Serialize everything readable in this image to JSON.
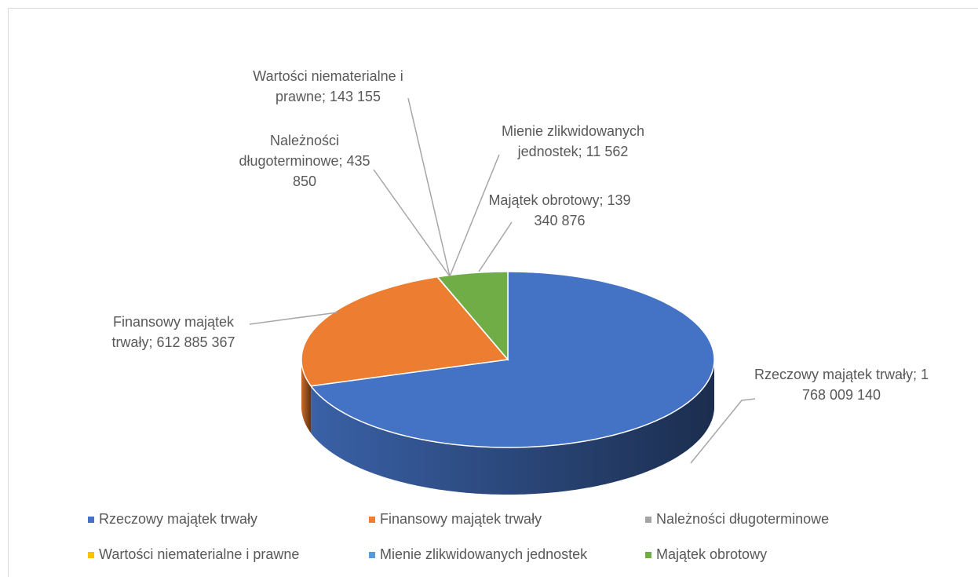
{
  "chart_data": {
    "type": "pie",
    "categories": [
      "Rzeczowy majątek trwały",
      "Finansowy majątek trwały",
      "Należności długoterminowe",
      "Wartości niematerialne i prawne",
      "Mienie zlikwidowanych jednostek",
      "Majątek obrotowy"
    ],
    "values": [
      1768009140,
      612885367,
      435850,
      143155,
      11562,
      139340876
    ],
    "value_labels": [
      "Rzeczowy majątek trwały; 1 768 009 140",
      "Finansowy majątek trwały; 612 885 367",
      "Należności długoterminowe; 435 850",
      "Wartości niematerialne i prawne; 143 155",
      "Mienie zlikwidowanych jednostek; 11 562",
      "Majątek obrotowy; 139 340 876"
    ],
    "colors": [
      "#4472c4",
      "#ed7d31",
      "#a5a5a5",
      "#ffc000",
      "#5b9bd5",
      "#70ad47"
    ],
    "legend": "bottom"
  }
}
